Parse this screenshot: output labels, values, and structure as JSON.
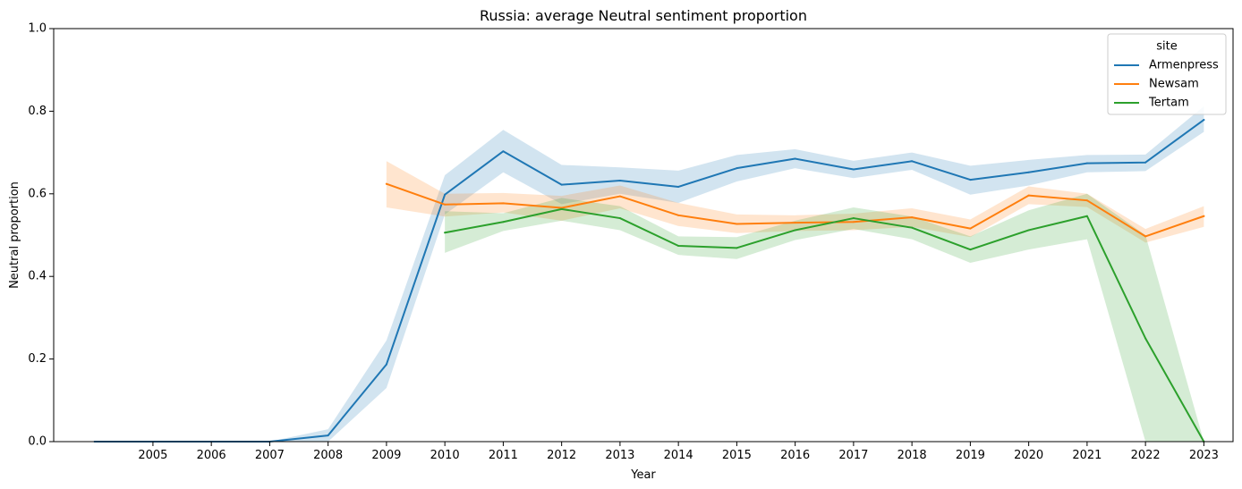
{
  "chart_data": {
    "type": "line",
    "title": "Russia: average Neutral sentiment proportion",
    "xlabel": "Year",
    "ylabel": "Neutral proportion",
    "x_tick_labels": [
      "2005",
      "2006",
      "2007",
      "2008",
      "2009",
      "2010",
      "2011",
      "2012",
      "2013",
      "2014",
      "2015",
      "2016",
      "2017",
      "2018",
      "2019",
      "2020",
      "2021",
      "2022",
      "2023"
    ],
    "y_tick_labels": [
      "0.0",
      "0.2",
      "0.4",
      "0.6",
      "0.8",
      "1.0"
    ],
    "xlim": [
      2003.3,
      2023.5
    ],
    "ylim": [
      0,
      1
    ],
    "grid": false,
    "legend": {
      "title": "site",
      "placement": "top-right"
    },
    "series": [
      {
        "name": "Armenpress",
        "color": "#1f77b4",
        "points": [
          {
            "x": 2004,
            "y": 0.0,
            "lo": 0.0,
            "hi": 0.0
          },
          {
            "x": 2005,
            "y": 0.0,
            "lo": 0.0,
            "hi": 0.0
          },
          {
            "x": 2006,
            "y": 0.0,
            "lo": 0.0,
            "hi": 0.0
          },
          {
            "x": 2007,
            "y": 0.0,
            "lo": 0.0,
            "hi": 0.0
          },
          {
            "x": 2008,
            "y": 0.015,
            "lo": 0.0,
            "hi": 0.03
          },
          {
            "x": 2009,
            "y": 0.187,
            "lo": 0.13,
            "hi": 0.245
          },
          {
            "x": 2010,
            "y": 0.598,
            "lo": 0.55,
            "hi": 0.645
          },
          {
            "x": 2011,
            "y": 0.703,
            "lo": 0.652,
            "hi": 0.755
          },
          {
            "x": 2012,
            "y": 0.622,
            "lo": 0.575,
            "hi": 0.67
          },
          {
            "x": 2013,
            "y": 0.632,
            "lo": 0.6,
            "hi": 0.664
          },
          {
            "x": 2014,
            "y": 0.617,
            "lo": 0.578,
            "hi": 0.656
          },
          {
            "x": 2015,
            "y": 0.662,
            "lo": 0.63,
            "hi": 0.694
          },
          {
            "x": 2016,
            "y": 0.685,
            "lo": 0.662,
            "hi": 0.708
          },
          {
            "x": 2017,
            "y": 0.659,
            "lo": 0.638,
            "hi": 0.68
          },
          {
            "x": 2018,
            "y": 0.679,
            "lo": 0.658,
            "hi": 0.7
          },
          {
            "x": 2019,
            "y": 0.634,
            "lo": 0.598,
            "hi": 0.668
          },
          {
            "x": 2020,
            "y": 0.652,
            "lo": 0.62,
            "hi": 0.682
          },
          {
            "x": 2021,
            "y": 0.674,
            "lo": 0.652,
            "hi": 0.694
          },
          {
            "x": 2022,
            "y": 0.676,
            "lo": 0.655,
            "hi": 0.695
          },
          {
            "x": 2023,
            "y": 0.779,
            "lo": 0.75,
            "hi": 0.812
          }
        ]
      },
      {
        "name": "Newsam",
        "color": "#ff7f0e",
        "points": [
          {
            "x": 2009,
            "y": 0.624,
            "lo": 0.567,
            "hi": 0.679
          },
          {
            "x": 2010,
            "y": 0.574,
            "lo": 0.545,
            "hi": 0.6
          },
          {
            "x": 2011,
            "y": 0.577,
            "lo": 0.555,
            "hi": 0.602
          },
          {
            "x": 2012,
            "y": 0.566,
            "lo": 0.535,
            "hi": 0.595
          },
          {
            "x": 2013,
            "y": 0.594,
            "lo": 0.565,
            "hi": 0.62
          },
          {
            "x": 2014,
            "y": 0.548,
            "lo": 0.522,
            "hi": 0.578
          },
          {
            "x": 2015,
            "y": 0.527,
            "lo": 0.505,
            "hi": 0.55
          },
          {
            "x": 2016,
            "y": 0.53,
            "lo": 0.51,
            "hi": 0.548
          },
          {
            "x": 2017,
            "y": 0.532,
            "lo": 0.512,
            "hi": 0.552
          },
          {
            "x": 2018,
            "y": 0.543,
            "lo": 0.52,
            "hi": 0.565
          },
          {
            "x": 2019,
            "y": 0.516,
            "lo": 0.495,
            "hi": 0.538
          },
          {
            "x": 2020,
            "y": 0.596,
            "lo": 0.575,
            "hi": 0.618
          },
          {
            "x": 2021,
            "y": 0.584,
            "lo": 0.568,
            "hi": 0.6
          },
          {
            "x": 2022,
            "y": 0.497,
            "lo": 0.482,
            "hi": 0.515
          },
          {
            "x": 2023,
            "y": 0.546,
            "lo": 0.52,
            "hi": 0.57
          }
        ]
      },
      {
        "name": "Tertam",
        "color": "#2ca02c",
        "points": [
          {
            "x": 2010,
            "y": 0.506,
            "lo": 0.457,
            "hi": 0.558
          },
          {
            "x": 2011,
            "y": 0.532,
            "lo": 0.51,
            "hi": 0.553
          },
          {
            "x": 2012,
            "y": 0.563,
            "lo": 0.535,
            "hi": 0.59
          },
          {
            "x": 2013,
            "y": 0.541,
            "lo": 0.512,
            "hi": 0.57
          },
          {
            "x": 2014,
            "y": 0.474,
            "lo": 0.452,
            "hi": 0.497
          },
          {
            "x": 2015,
            "y": 0.469,
            "lo": 0.442,
            "hi": 0.495
          },
          {
            "x": 2016,
            "y": 0.512,
            "lo": 0.488,
            "hi": 0.535
          },
          {
            "x": 2017,
            "y": 0.541,
            "lo": 0.515,
            "hi": 0.567
          },
          {
            "x": 2018,
            "y": 0.518,
            "lo": 0.49,
            "hi": 0.545
          },
          {
            "x": 2019,
            "y": 0.465,
            "lo": 0.433,
            "hi": 0.497
          },
          {
            "x": 2020,
            "y": 0.512,
            "lo": 0.465,
            "hi": 0.56
          },
          {
            "x": 2021,
            "y": 0.546,
            "lo": 0.49,
            "hi": 0.6
          },
          {
            "x": 2022,
            "y": 0.25,
            "lo": 0.0,
            "hi": 0.5
          },
          {
            "x": 2023,
            "y": 0.0,
            "lo": 0.0,
            "hi": 0.0
          }
        ]
      }
    ]
  }
}
